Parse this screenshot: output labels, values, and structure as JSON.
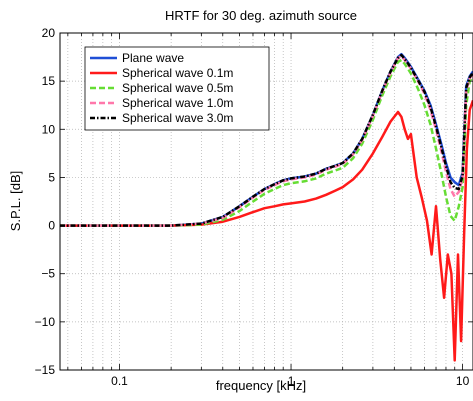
{
  "chart_data": {
    "type": "line",
    "title": "HRTF for 30 deg. azimuth source",
    "xlabel": "frequency [kHz]",
    "ylabel": "S.P.L. [dB]",
    "xscale": "log",
    "xlim": [
      0.045,
      11.5
    ],
    "ylim": [
      -15,
      20
    ],
    "grid": true,
    "legend_position": "top-left",
    "x_ticks": [
      {
        "value": 0.1,
        "label": "0.1"
      },
      {
        "value": 1,
        "label": "1"
      },
      {
        "value": 10,
        "label": "10"
      }
    ],
    "y_ticks": [
      {
        "value": 20,
        "label": "20"
      },
      {
        "value": 15,
        "label": "15"
      },
      {
        "value": 10,
        "label": "10"
      },
      {
        "value": 5,
        "label": "5"
      },
      {
        "value": 0,
        "label": "0"
      },
      {
        "value": -5,
        "label": "−5"
      },
      {
        "value": -10,
        "label": "−10"
      },
      {
        "value": -15,
        "label": "−15"
      }
    ],
    "series": [
      {
        "name": "Plane wave",
        "color": "#1f4fd6",
        "dash": "solid",
        "x": [
          0.045,
          0.1,
          0.2,
          0.3,
          0.4,
          0.5,
          0.6,
          0.7,
          0.8,
          0.9,
          1.0,
          1.2,
          1.4,
          1.6,
          1.8,
          2.0,
          2.3,
          2.6,
          3.0,
          3.4,
          3.8,
          4.2,
          4.4,
          4.6,
          5.0,
          5.5,
          6.0,
          6.5,
          7.0,
          7.5,
          8.0,
          8.5,
          9.0,
          9.5,
          10.0,
          10.5,
          11.0,
          11.5
        ],
        "y": [
          0,
          0,
          0,
          0.2,
          0.9,
          2.0,
          3.0,
          3.8,
          4.3,
          4.7,
          4.9,
          5.1,
          5.4,
          5.9,
          6.2,
          6.5,
          7.5,
          9.0,
          11.5,
          14.0,
          16.0,
          17.5,
          17.8,
          17.4,
          16.5,
          15.2,
          14.0,
          12.5,
          10.5,
          8.5,
          6.5,
          5.0,
          4.5,
          4.2,
          5.5,
          14.5,
          15.5,
          16.0
        ]
      },
      {
        "name": "Spherical wave 0.1m",
        "color": "#ff1a1a",
        "dash": "solid",
        "x": [
          0.045,
          0.1,
          0.2,
          0.3,
          0.4,
          0.5,
          0.6,
          0.7,
          0.8,
          0.9,
          1.0,
          1.2,
          1.4,
          1.6,
          1.8,
          2.0,
          2.3,
          2.6,
          3.0,
          3.4,
          3.8,
          4.2,
          4.4,
          4.6,
          4.8,
          5.0,
          5.4,
          5.8,
          6.2,
          6.6,
          7.0,
          7.4,
          7.8,
          8.2,
          8.6,
          9.0,
          9.4,
          9.8,
          10.2,
          10.6,
          11.0,
          11.5
        ],
        "y": [
          0,
          0,
          0,
          0.1,
          0.4,
          0.9,
          1.4,
          1.8,
          2.0,
          2.2,
          2.3,
          2.5,
          2.8,
          3.2,
          3.6,
          4.0,
          4.8,
          5.8,
          7.5,
          9.2,
          10.8,
          11.8,
          11.3,
          10.0,
          9.0,
          9.5,
          5.0,
          2.8,
          0.5,
          -3.0,
          2.0,
          -3.5,
          -7.5,
          -3.0,
          -5.0,
          -14.0,
          -3.0,
          -12.0,
          -1.0,
          8.0,
          12.0,
          13.0
        ]
      },
      {
        "name": "Spherical wave 0.5m",
        "color": "#66dd33",
        "dash": "6,3",
        "x": [
          0.045,
          0.1,
          0.2,
          0.3,
          0.4,
          0.5,
          0.6,
          0.7,
          0.8,
          0.9,
          1.0,
          1.2,
          1.4,
          1.6,
          1.8,
          2.0,
          2.3,
          2.6,
          3.0,
          3.4,
          3.8,
          4.2,
          4.4,
          4.6,
          5.0,
          5.5,
          6.0,
          6.5,
          7.0,
          7.5,
          8.0,
          8.5,
          9.0,
          9.5,
          10.0,
          10.5,
          11.0,
          11.5
        ],
        "y": [
          0,
          0,
          0,
          0.1,
          0.6,
          1.5,
          2.5,
          3.3,
          3.8,
          4.2,
          4.4,
          4.6,
          4.9,
          5.4,
          5.7,
          6.0,
          7.0,
          8.5,
          11.0,
          13.5,
          15.5,
          17.0,
          17.2,
          16.8,
          15.8,
          14.2,
          12.5,
          10.5,
          8.0,
          5.5,
          3.0,
          1.0,
          0.5,
          2.0,
          4.0,
          12.5,
          15.0,
          15.5
        ]
      },
      {
        "name": "Spherical wave 1.0m",
        "color": "#ff77aa",
        "dash": "6,3",
        "x": [
          0.045,
          0.1,
          0.2,
          0.3,
          0.4,
          0.5,
          0.6,
          0.7,
          0.8,
          0.9,
          1.0,
          1.2,
          1.4,
          1.6,
          1.8,
          2.0,
          2.3,
          2.6,
          3.0,
          3.4,
          3.8,
          4.2,
          4.4,
          4.6,
          5.0,
          5.5,
          6.0,
          6.5,
          7.0,
          7.5,
          8.0,
          8.5,
          9.0,
          9.5,
          10.0,
          10.5,
          11.0,
          11.5
        ],
        "y": [
          0,
          0,
          0,
          0.2,
          0.8,
          1.9,
          2.9,
          3.7,
          4.2,
          4.6,
          4.8,
          5.0,
          5.3,
          5.8,
          6.1,
          6.4,
          7.4,
          8.9,
          11.4,
          13.9,
          15.9,
          17.4,
          17.6,
          17.2,
          16.3,
          15.0,
          13.7,
          12.0,
          10.0,
          7.8,
          5.6,
          3.8,
          3.0,
          3.5,
          5.0,
          14.0,
          15.3,
          15.8
        ]
      },
      {
        "name": "Spherical wave 3.0m",
        "color": "#000000",
        "dash": "5,2,1.5,2",
        "x": [
          0.045,
          0.1,
          0.2,
          0.3,
          0.4,
          0.5,
          0.6,
          0.7,
          0.8,
          0.9,
          1.0,
          1.2,
          1.4,
          1.6,
          1.8,
          2.0,
          2.3,
          2.6,
          3.0,
          3.4,
          3.8,
          4.2,
          4.4,
          4.6,
          5.0,
          5.5,
          6.0,
          6.5,
          7.0,
          7.5,
          8.0,
          8.5,
          9.0,
          9.5,
          10.0,
          10.5,
          11.0,
          11.5
        ],
        "y": [
          0,
          0,
          0,
          0.2,
          0.9,
          2.0,
          3.0,
          3.8,
          4.3,
          4.7,
          4.9,
          5.1,
          5.4,
          5.9,
          6.2,
          6.5,
          7.5,
          9.0,
          11.5,
          14.0,
          16.0,
          17.4,
          17.7,
          17.3,
          16.4,
          15.1,
          13.9,
          12.3,
          10.3,
          8.2,
          6.2,
          4.5,
          3.9,
          3.8,
          5.2,
          14.3,
          15.4,
          15.9
        ]
      }
    ]
  }
}
